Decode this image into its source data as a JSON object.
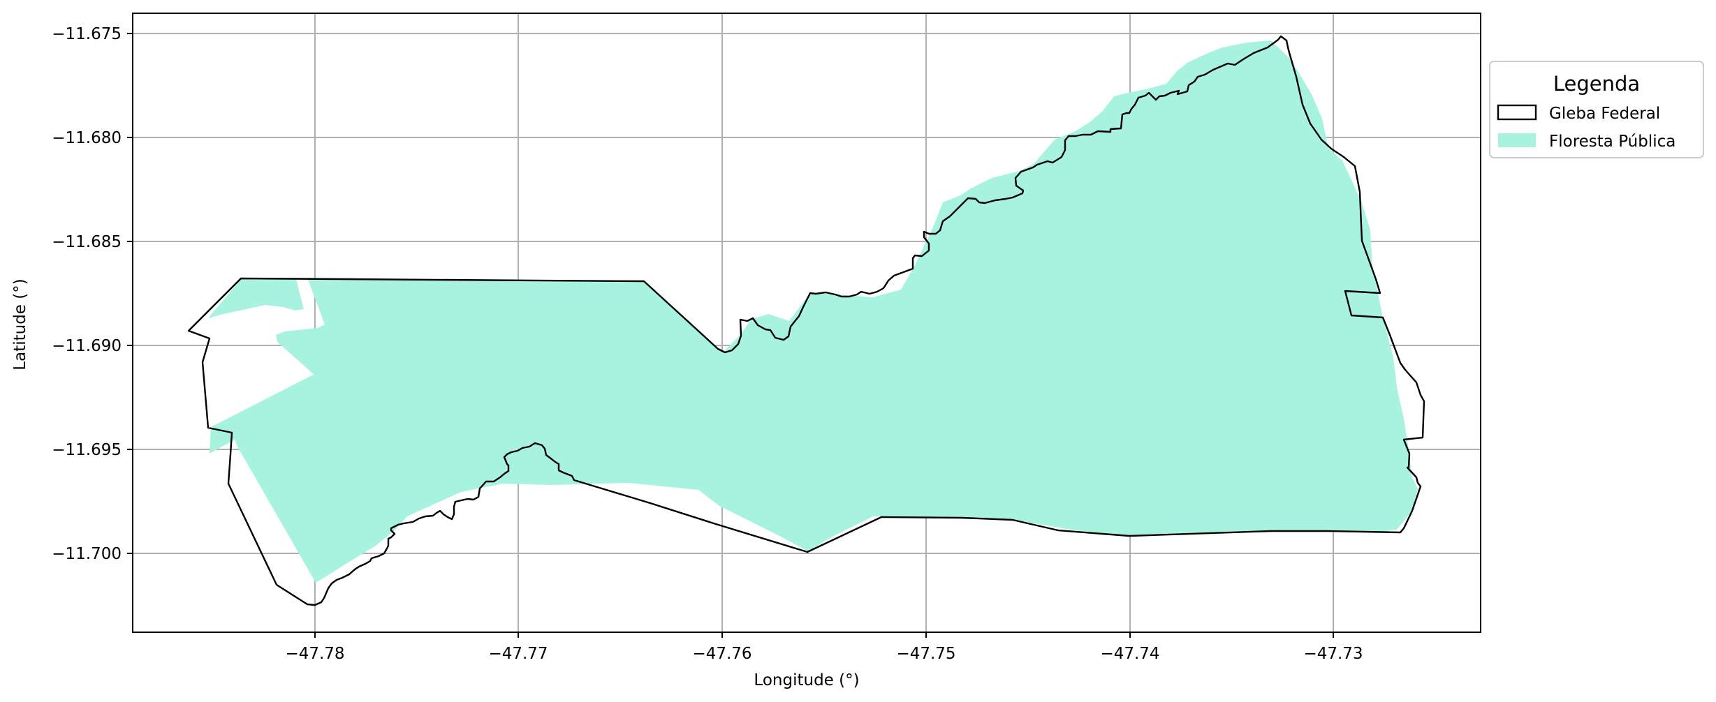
{
  "map": {
    "xlabel": "Longitude (°)",
    "ylabel": "Latitude (°)",
    "x_ticks": [
      "−47.78",
      "−47.77",
      "−47.76",
      "−47.75",
      "−47.74",
      "−47.73"
    ],
    "y_ticks": [
      "−11.675",
      "−11.680",
      "−11.685",
      "−11.690",
      "−11.695",
      "−11.700"
    ],
    "grid": true
  },
  "legend": {
    "title": "Legenda",
    "placement": "right, outside plot area, top",
    "items": [
      {
        "label": "Gleba Federal",
        "style": "outline",
        "color": "#000000"
      },
      {
        "label": "Floresta Pública",
        "style": "fill",
        "color": "#a8f3df"
      }
    ]
  },
  "colors": {
    "forest_fill": "#a8f3df",
    "boundary_stroke": "#000000",
    "grid": "#b0b0b0"
  }
}
